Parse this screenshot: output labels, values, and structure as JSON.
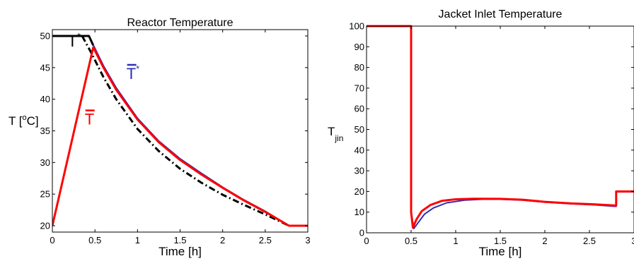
{
  "colors": {
    "black": "#000000",
    "blue": "#2e2eb8",
    "red": "#ff0000",
    "axis": "#000000"
  },
  "chart_data": [
    {
      "type": "line",
      "title": "Reactor Temperature",
      "xlabel": "Time [h]",
      "ylabel": "T [°C]",
      "ylabel_parts": {
        "base": "T [",
        "sup": "o",
        "rest": "C]"
      },
      "xlim": [
        0,
        3
      ],
      "ylim": [
        19,
        51
      ],
      "xticks": [
        0,
        0.5,
        1,
        1.5,
        2,
        2.5,
        3
      ],
      "xtick_labels": [
        "0",
        "0.5",
        "1",
        "1.5",
        "2",
        "2.5",
        "3"
      ],
      "yticks": [
        20,
        25,
        30,
        35,
        40,
        45,
        50
      ],
      "ytick_labels": [
        "20",
        "25",
        "30",
        "35",
        "40",
        "45",
        "50"
      ],
      "grid": false,
      "annotations": [
        {
          "text": "T",
          "sup": "*",
          "overbar": false,
          "color": "#000000",
          "at": [
            0.18,
            48.3
          ]
        },
        {
          "text": "T",
          "sup": "*",
          "overbar": true,
          "color": "#2e2eb8",
          "at": [
            0.87,
            43.2
          ]
        },
        {
          "text": "T",
          "sup": "",
          "overbar": true,
          "color": "#ff0000",
          "at": [
            0.38,
            36.0
          ]
        }
      ],
      "series": [
        {
          "name": "T*",
          "color": "#000000",
          "dash": "solid",
          "width": 3,
          "x": [
            0,
            0.43,
            0.48
          ],
          "y": [
            50,
            50,
            48.5
          ]
        },
        {
          "color": "#000000",
          "dash": "dashdot",
          "width": 3,
          "x": [
            0.35,
            0.45,
            0.6,
            0.75,
            1.0,
            1.25,
            1.5,
            1.75,
            2.0,
            2.25,
            2.5,
            2.78,
            3.0
          ],
          "y": [
            50,
            47.5,
            43.5,
            40.0,
            35.3,
            31.8,
            29.0,
            26.8,
            24.9,
            23.3,
            21.8,
            20.0,
            20.0
          ]
        },
        {
          "name": "T̄*",
          "color": "#2e2eb8",
          "dash": "solid",
          "width": 2,
          "x": [
            0.48,
            0.6,
            0.75,
            1.0,
            1.25,
            1.5,
            1.75,
            2.0,
            2.25,
            2.5,
            2.78,
            3.0
          ],
          "y": [
            48.6,
            45.3,
            41.8,
            37.0,
            33.4,
            30.6,
            28.3,
            26.1,
            24.1,
            22.3,
            20.0,
            20.0
          ]
        },
        {
          "name": "T̄",
          "color": "#ff0000",
          "dash": "solid",
          "width": 3,
          "x": [
            0,
            0.48,
            0.6,
            0.75,
            1.0,
            1.25,
            1.5,
            1.75,
            2.0,
            2.25,
            2.5,
            2.78,
            3.0
          ],
          "y": [
            20,
            48.2,
            45.0,
            41.5,
            36.8,
            33.2,
            30.4,
            28.1,
            26.0,
            24.0,
            22.2,
            20.0,
            20.0
          ]
        }
      ]
    },
    {
      "type": "line",
      "title": "Jacket Inlet Temperature",
      "xlabel": "Time [h]",
      "ylabel": "T",
      "ylabel_sub": "jin",
      "xlim": [
        0,
        3
      ],
      "ylim": [
        0,
        100
      ],
      "xticks": [
        0,
        0.5,
        1,
        1.5,
        2,
        2.5,
        3
      ],
      "xtick_labels": [
        "0",
        "0.5",
        "1",
        "1.5",
        "2",
        "2.5",
        "3"
      ],
      "yticks": [
        0,
        10,
        20,
        30,
        40,
        50,
        60,
        70,
        80,
        90,
        100
      ],
      "ytick_labels": [
        "0",
        "10",
        "20",
        "30",
        "40",
        "50",
        "60",
        "70",
        "80",
        "90",
        "100"
      ],
      "grid": false,
      "series": [
        {
          "color": "#2e2eb8",
          "dash": "solid",
          "width": 2,
          "x": [
            0,
            0.5,
            0.5,
            0.53,
            0.58,
            0.65,
            0.75,
            0.9,
            1.1,
            1.3,
            1.5,
            1.75,
            2.0,
            2.3,
            2.55,
            2.78,
            2.8,
            2.8,
            3.0
          ],
          "y": [
            100,
            100,
            10,
            2,
            5,
            9,
            12,
            14.5,
            15.8,
            16.2,
            16.2,
            15.8,
            14.8,
            14.0,
            13.5,
            12.8,
            12.8,
            19.8,
            19.8
          ]
        },
        {
          "color": "#ff0000",
          "dash": "solid",
          "width": 3,
          "x": [
            0,
            0.5,
            0.5,
            0.52,
            0.56,
            0.62,
            0.72,
            0.85,
            1.0,
            1.2,
            1.5,
            1.75,
            2.0,
            2.3,
            2.55,
            2.78,
            2.8,
            2.8,
            3.0
          ],
          "y": [
            100,
            100,
            10,
            2.5,
            6.5,
            10.5,
            13.5,
            15.5,
            16.2,
            16.5,
            16.4,
            16.0,
            15.0,
            14.2,
            13.8,
            13.2,
            13.2,
            20,
            20
          ]
        }
      ]
    }
  ]
}
